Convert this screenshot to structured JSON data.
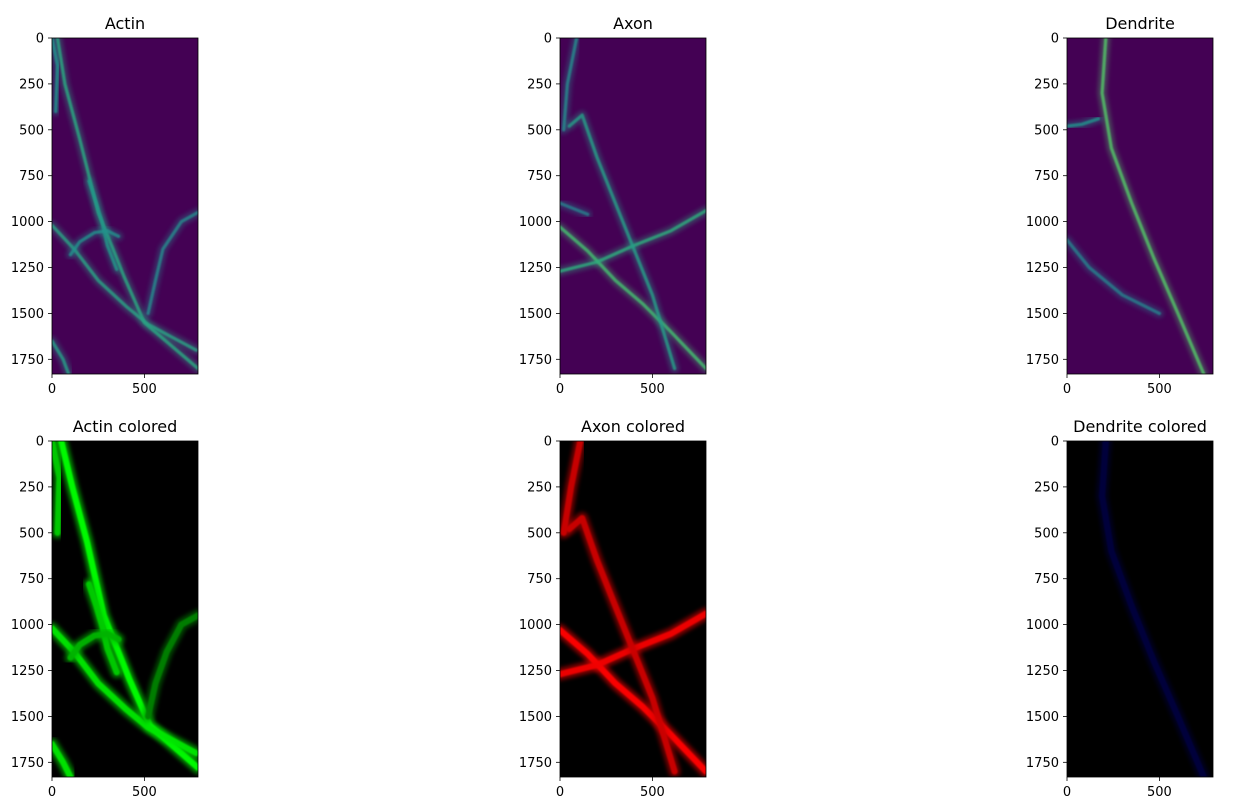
{
  "chart_data": [
    {
      "type": "heatmap",
      "title": "Actin",
      "colormap": "viridis",
      "xlim": [
        0,
        790
      ],
      "ylim": [
        1830,
        0
      ],
      "xticks": [
        0,
        500
      ],
      "yticks": [
        0,
        250,
        500,
        750,
        1000,
        1250,
        1500,
        1750
      ],
      "structures": [
        {
          "points": [
            [
              30,
              0
            ],
            [
              70,
              250
            ],
            [
              150,
              550
            ],
            [
              250,
              950
            ],
            [
              390,
              1300
            ],
            [
              500,
              1550
            ],
            [
              790,
              1800
            ]
          ],
          "intensity": 0.55
        },
        {
          "points": [
            [
              0,
              1020
            ],
            [
              120,
              1150
            ],
            [
              250,
              1320
            ],
            [
              400,
              1460
            ],
            [
              520,
              1560
            ],
            [
              780,
              1700
            ]
          ],
          "intensity": 0.5
        },
        {
          "points": [
            [
              200,
              780
            ],
            [
              240,
              900
            ],
            [
              270,
              1000
            ],
            [
              300,
              1130
            ],
            [
              350,
              1260
            ]
          ],
          "intensity": 0.4
        },
        {
          "points": [
            [
              100,
              1180
            ],
            [
              150,
              1110
            ],
            [
              230,
              1060
            ],
            [
              300,
              1050
            ],
            [
              360,
              1080
            ]
          ],
          "intensity": 0.35
        },
        {
          "points": [
            [
              0,
              0
            ],
            [
              30,
              150
            ],
            [
              20,
              400
            ]
          ],
          "intensity": 0.35
        },
        {
          "points": [
            [
              0,
              1650
            ],
            [
              60,
              1750
            ],
            [
              90,
              1830
            ]
          ],
          "intensity": 0.45
        },
        {
          "points": [
            [
              520,
              1500
            ],
            [
              560,
              1320
            ],
            [
              600,
              1150
            ],
            [
              700,
              1000
            ],
            [
              790,
              950
            ]
          ],
          "intensity": 0.3
        }
      ]
    },
    {
      "type": "heatmap",
      "title": "Axon",
      "colormap": "viridis",
      "xlim": [
        0,
        790
      ],
      "ylim": [
        1830,
        0
      ],
      "xticks": [
        0,
        500
      ],
      "yticks": [
        0,
        250,
        500,
        750,
        1000,
        1250,
        1500,
        1750
      ],
      "structures": [
        {
          "points": [
            [
              0,
              1030
            ],
            [
              150,
              1160
            ],
            [
              300,
              1320
            ],
            [
              450,
              1450
            ],
            [
              600,
              1600
            ],
            [
              790,
              1800
            ]
          ],
          "intensity": 0.75
        },
        {
          "points": [
            [
              0,
              1270
            ],
            [
              200,
              1220
            ],
            [
              400,
              1130
            ],
            [
              600,
              1050
            ],
            [
              790,
              940
            ]
          ],
          "intensity": 0.6
        },
        {
          "points": [
            [
              50,
              480
            ],
            [
              120,
              420
            ],
            [
              200,
              650
            ],
            [
              300,
              900
            ],
            [
              400,
              1150
            ],
            [
              500,
              1400
            ],
            [
              620,
              1800
            ]
          ],
          "intensity": 0.45
        },
        {
          "points": [
            [
              90,
              0
            ],
            [
              40,
              250
            ],
            [
              20,
              500
            ]
          ],
          "intensity": 0.3
        },
        {
          "points": [
            [
              0,
              900
            ],
            [
              150,
              960
            ]
          ],
          "intensity": 0.25
        }
      ]
    },
    {
      "type": "heatmap",
      "title": "Dendrite",
      "colormap": "viridis",
      "xlim": [
        0,
        790
      ],
      "ylim": [
        1830,
        0
      ],
      "xticks": [
        0,
        500
      ],
      "yticks": [
        0,
        250,
        500,
        750,
        1000,
        1250,
        1500,
        1750
      ],
      "structures": [
        {
          "points": [
            [
              210,
              0
            ],
            [
              190,
              300
            ],
            [
              240,
              600
            ],
            [
              350,
              900
            ],
            [
              470,
              1200
            ],
            [
              600,
              1500
            ],
            [
              740,
              1830
            ]
          ],
          "intensity": 0.8
        },
        {
          "points": [
            [
              0,
              480
            ],
            [
              80,
              470
            ],
            [
              170,
              440
            ]
          ],
          "intensity": 0.35
        },
        {
          "points": [
            [
              0,
              1100
            ],
            [
              120,
              1250
            ],
            [
              300,
              1400
            ],
            [
              500,
              1500
            ]
          ],
          "intensity": 0.25
        }
      ]
    },
    {
      "type": "heatmap",
      "title": "Actin colored",
      "colormap": "green",
      "xlim": [
        0,
        790
      ],
      "ylim": [
        1830,
        0
      ],
      "xticks": [
        0,
        500
      ],
      "yticks": [
        0,
        250,
        500,
        750,
        1000,
        1250,
        1500,
        1750
      ],
      "structures": [
        {
          "points": [
            [
              50,
              0
            ],
            [
              110,
              250
            ],
            [
              190,
              550
            ],
            [
              280,
              950
            ],
            [
              420,
              1300
            ],
            [
              530,
              1550
            ],
            [
              790,
              1780
            ]
          ],
          "intensity": 1.0
        },
        {
          "points": [
            [
              0,
              1020
            ],
            [
              120,
              1150
            ],
            [
              250,
              1320
            ],
            [
              400,
              1460
            ],
            [
              520,
              1560
            ],
            [
              780,
              1700
            ]
          ],
          "intensity": 0.9
        },
        {
          "points": [
            [
              200,
              780
            ],
            [
              240,
              900
            ],
            [
              270,
              1000
            ],
            [
              300,
              1130
            ],
            [
              350,
              1260
            ]
          ],
          "intensity": 0.8
        },
        {
          "points": [
            [
              100,
              1180
            ],
            [
              150,
              1110
            ],
            [
              230,
              1060
            ],
            [
              300,
              1050
            ],
            [
              360,
              1080
            ]
          ],
          "intensity": 0.7
        },
        {
          "points": [
            [
              0,
              0
            ],
            [
              40,
              200
            ],
            [
              30,
              500
            ]
          ],
          "intensity": 0.8
        },
        {
          "points": [
            [
              0,
              1650
            ],
            [
              60,
              1750
            ],
            [
              100,
              1830
            ]
          ],
          "intensity": 0.9
        },
        {
          "points": [
            [
              520,
              1500
            ],
            [
              560,
              1320
            ],
            [
              620,
              1150
            ],
            [
              700,
              1000
            ],
            [
              790,
              950
            ]
          ],
          "intensity": 0.5
        }
      ]
    },
    {
      "type": "heatmap",
      "title": "Axon colored",
      "colormap": "red",
      "xlim": [
        0,
        790
      ],
      "ylim": [
        1830,
        0
      ],
      "xticks": [
        0,
        500
      ],
      "yticks": [
        0,
        250,
        500,
        750,
        1000,
        1250,
        1500,
        1750
      ],
      "structures": [
        {
          "points": [
            [
              0,
              1030
            ],
            [
              150,
              1160
            ],
            [
              300,
              1320
            ],
            [
              450,
              1450
            ],
            [
              600,
              1600
            ],
            [
              790,
              1800
            ]
          ],
          "intensity": 1.0
        },
        {
          "points": [
            [
              0,
              1270
            ],
            [
              200,
              1220
            ],
            [
              400,
              1130
            ],
            [
              600,
              1050
            ],
            [
              790,
              940
            ]
          ],
          "intensity": 0.95
        },
        {
          "points": [
            [
              50,
              480
            ],
            [
              120,
              420
            ],
            [
              200,
              650
            ],
            [
              300,
              900
            ],
            [
              400,
              1150
            ],
            [
              500,
              1400
            ],
            [
              620,
              1800
            ]
          ],
          "intensity": 0.8
        },
        {
          "points": [
            [
              110,
              0
            ],
            [
              60,
              250
            ],
            [
              20,
              500
            ]
          ],
          "intensity": 0.8
        }
      ]
    },
    {
      "type": "heatmap",
      "title": "Dendrite colored",
      "colormap": "blue",
      "xlim": [
        0,
        790
      ],
      "ylim": [
        1830,
        0
      ],
      "xticks": [
        0,
        500
      ],
      "yticks": [
        0,
        250,
        500,
        750,
        1000,
        1250,
        1500,
        1750
      ],
      "structures": [
        {
          "points": [
            [
              210,
              0
            ],
            [
              190,
              300
            ],
            [
              240,
              600
            ],
            [
              350,
              900
            ],
            [
              470,
              1200
            ],
            [
              600,
              1500
            ],
            [
              740,
              1830
            ]
          ],
          "intensity": 0.12
        }
      ]
    }
  ]
}
